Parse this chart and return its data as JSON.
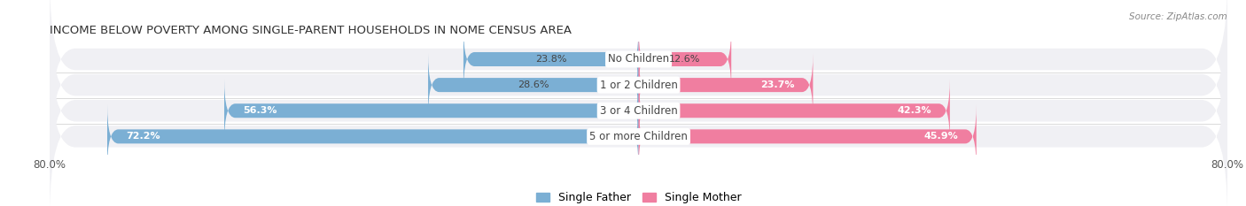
{
  "title": "INCOME BELOW POVERTY AMONG SINGLE-PARENT HOUSEHOLDS IN NOME CENSUS AREA",
  "source": "Source: ZipAtlas.com",
  "categories": [
    "No Children",
    "1 or 2 Children",
    "3 or 4 Children",
    "5 or more Children"
  ],
  "single_father": [
    23.8,
    28.6,
    56.3,
    72.2
  ],
  "single_mother": [
    12.6,
    23.7,
    42.3,
    45.9
  ],
  "x_axis_left": -80.0,
  "x_axis_right": 80.0,
  "color_father": "#7BAFD4",
  "color_mother": "#F07EA0",
  "bar_height": 0.55,
  "background_color": "#FFFFFF",
  "row_bg_color": "#F0F0F4",
  "title_fontsize": 9.5,
  "label_fontsize": 8.5,
  "tick_fontsize": 8.5,
  "legend_fontsize": 9,
  "value_fontsize": 8.0
}
